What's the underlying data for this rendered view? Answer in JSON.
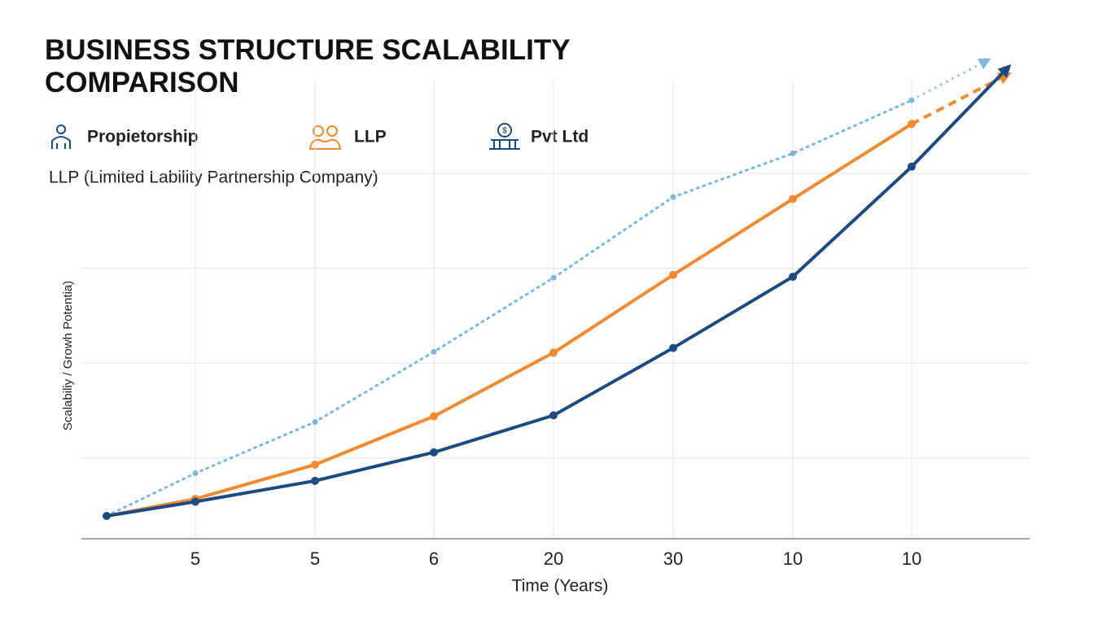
{
  "chart_data": {
    "type": "line",
    "title": "BUSINESS STRUCTURE SCALABILITY COMPARISON",
    "subtitle": "LLP (Limited Lability Partnership Company)",
    "x_label": "Time (Years)",
    "y_label": "Scalabiliy / Growh Potentia)",
    "categories": [
      null,
      "5",
      "5",
      "6",
      "20",
      "30",
      "10",
      "10",
      null
    ],
    "ylim": [
      0.15,
      5.2
    ],
    "grid_lines": [
      1,
      2,
      3,
      4
    ],
    "grid": true,
    "series": [
      {
        "name": "Propietorship",
        "color": "#7ab8de",
        "style": "dotted",
        "values": [
          0.39,
          0.84,
          1.38,
          2.12,
          2.9,
          3.75,
          4.21,
          4.77,
          5.2
        ]
      },
      {
        "name": "LLP",
        "color": "#f28a30",
        "style": "solid",
        "values": [
          0.39,
          0.57,
          0.93,
          1.44,
          2.11,
          2.93,
          3.73,
          4.52,
          5.05
        ]
      },
      {
        "name": "Pvt Ltd",
        "color": "#1c4b82",
        "style": "solid",
        "values": [
          0.39,
          0.54,
          0.76,
          1.06,
          1.45,
          2.16,
          2.91,
          4.07,
          5.13
        ]
      }
    ]
  }
}
